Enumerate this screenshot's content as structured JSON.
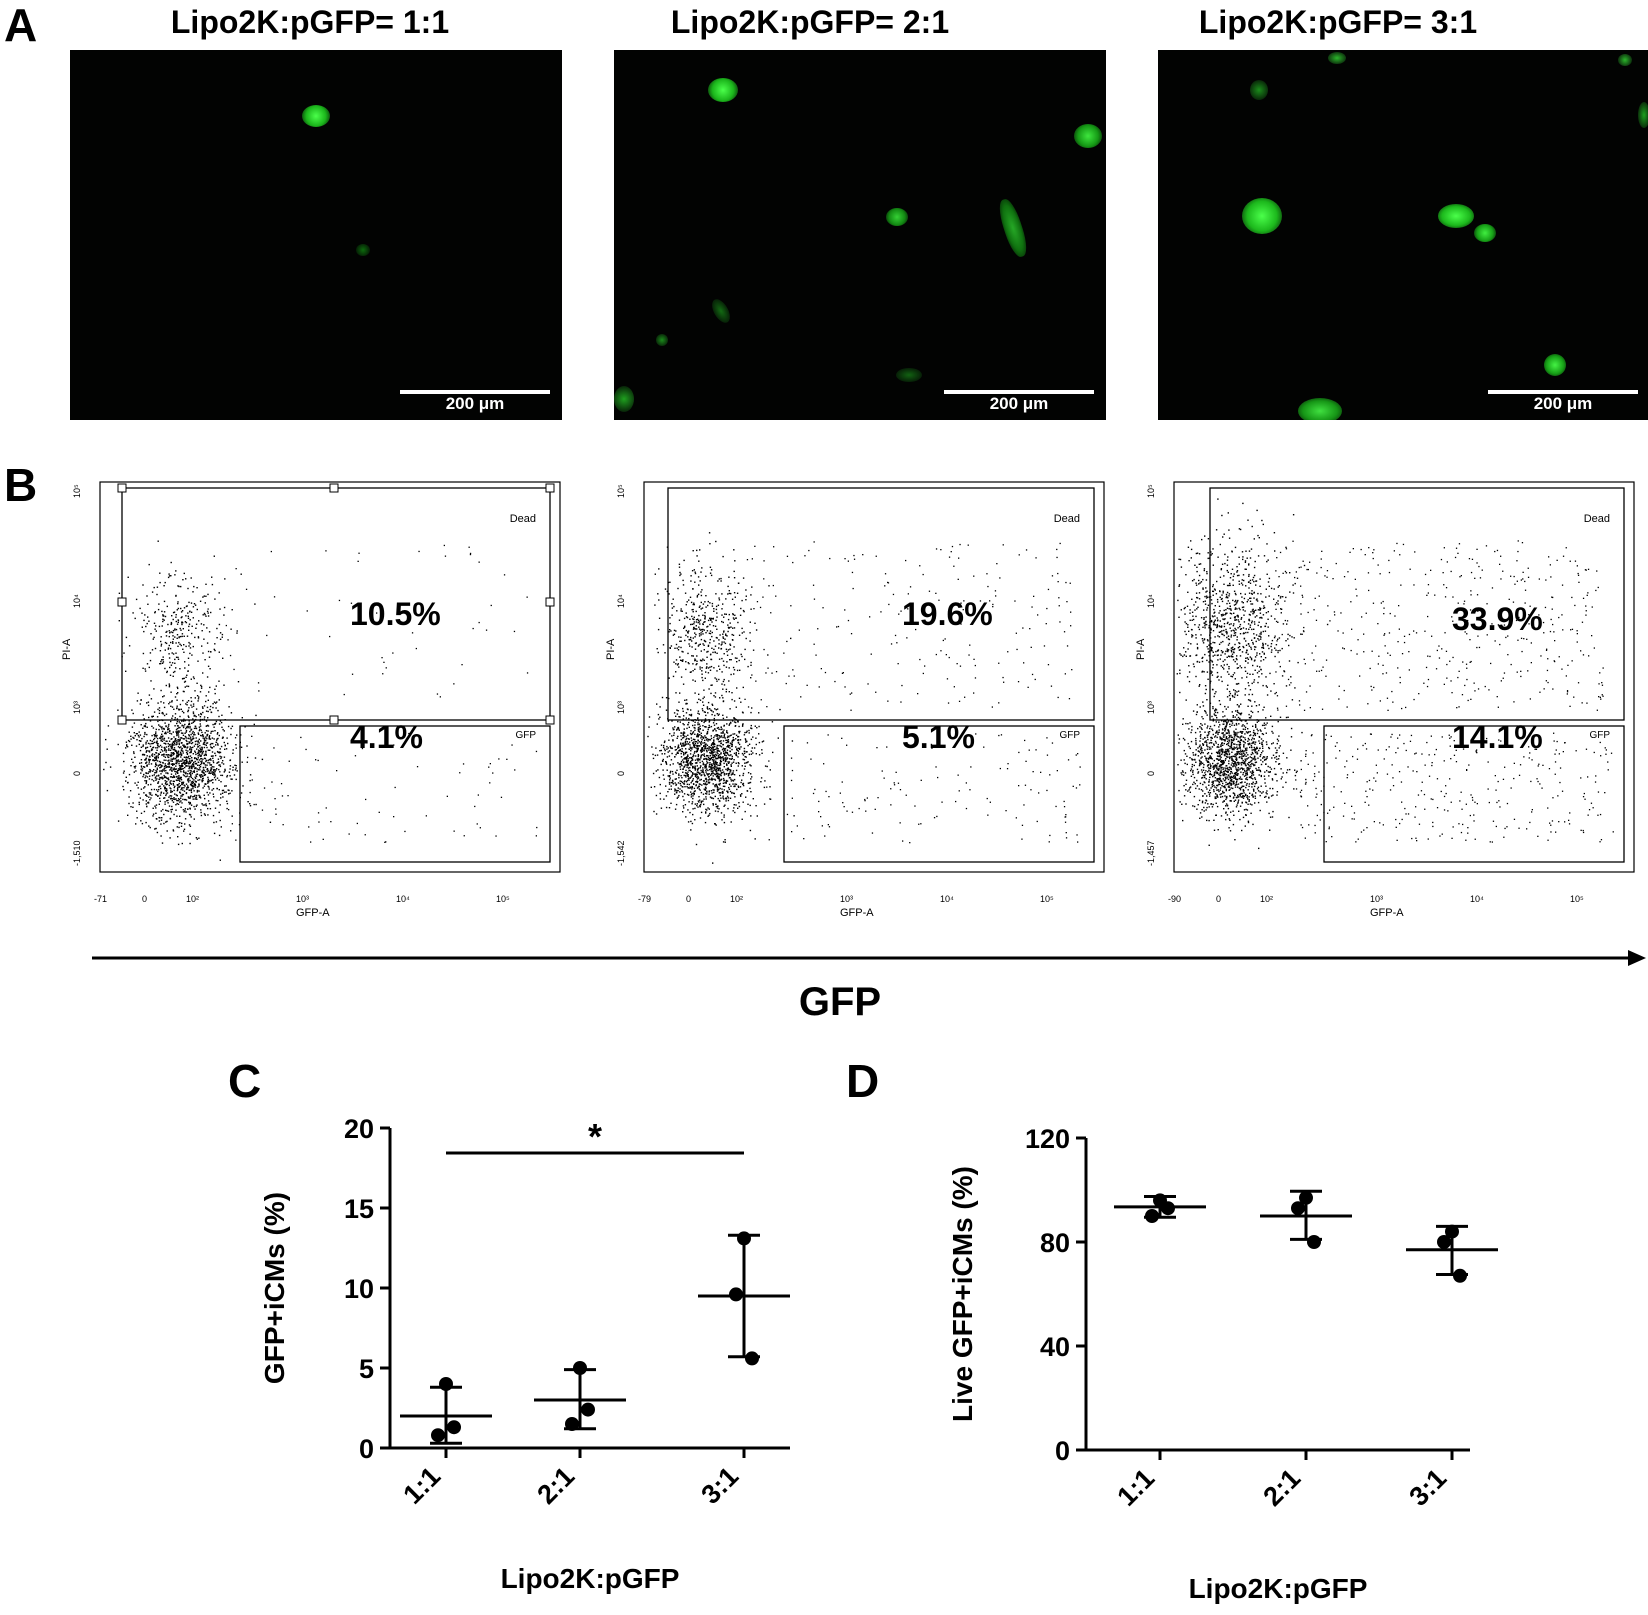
{
  "panels": {
    "A": "A",
    "B": "B",
    "C": "C",
    "D": "D"
  },
  "micrographs": [
    {
      "title": "Lipo2K:pGFP= 1:1",
      "scalebar": "200 μm"
    },
    {
      "title": "Lipo2K:pGFP= 2:1",
      "scalebar": "200 μm"
    },
    {
      "title": "Lipo2K:pGFP= 3:1",
      "scalebar": "200 μm"
    }
  ],
  "flow_plots": [
    {
      "dead_gate_label": "Dead",
      "gfp_gate_label": "GFP",
      "dead_pct": "10.5%",
      "gfp_pct": "4.1%",
      "y_ticks": [
        "10⁵",
        "10⁴",
        "10³",
        "0",
        "-1,510"
      ],
      "x_ticks": [
        "-71",
        "0",
        "10²",
        "10³",
        "10⁴",
        "10⁵"
      ],
      "x_label": "GFP-A",
      "y_label": "PI-A"
    },
    {
      "dead_gate_label": "Dead",
      "gfp_gate_label": "GFP",
      "dead_pct": "19.6%",
      "gfp_pct": "5.1%",
      "y_ticks": [
        "10⁵",
        "10⁴",
        "10³",
        "0",
        "-1,542"
      ],
      "x_ticks": [
        "-79",
        "0",
        "10²",
        "10³",
        "10⁴",
        "10⁵"
      ],
      "x_label": "GFP-A",
      "y_label": "PI-A"
    },
    {
      "dead_gate_label": "Dead",
      "gfp_gate_label": "GFP",
      "dead_pct": "33.9%",
      "gfp_pct": "14.1%",
      "y_ticks": [
        "10⁵",
        "10⁴",
        "10³",
        "0",
        "-1,457"
      ],
      "x_ticks": [
        "-90",
        "0",
        "10²",
        "10³",
        "10⁴",
        "10⁵"
      ],
      "x_label": "GFP-A",
      "y_label": "PI-A"
    }
  ],
  "gfp_axis_label": "GFP",
  "chart_data": [
    {
      "type": "scatter",
      "panel": "C",
      "categories": [
        "1:1",
        "2:1",
        "3:1"
      ],
      "points": [
        [
          4.0,
          0.8,
          1.3
        ],
        [
          5.0,
          1.5,
          2.4
        ],
        [
          13.1,
          9.6,
          5.6
        ]
      ],
      "means": [
        2.0,
        3.0,
        9.5
      ],
      "sd_upper": [
        3.8,
        4.9,
        13.3
      ],
      "sd_lower": [
        0.3,
        1.2,
        5.7
      ],
      "ylabel": "GFP+iCMs (%)",
      "xlabel": "Lipo2K:pGFP",
      "ylim": [
        0,
        20
      ],
      "yticks": [
        0,
        5,
        10,
        15,
        20
      ],
      "significance": {
        "from": "1:1",
        "to": "3:1",
        "label": "*"
      }
    },
    {
      "type": "scatter",
      "panel": "D",
      "categories": [
        "1:1",
        "2:1",
        "3:1"
      ],
      "points": [
        [
          96,
          90,
          93
        ],
        [
          97,
          93,
          80
        ],
        [
          84,
          80,
          67
        ]
      ],
      "means": [
        93.5,
        90,
        77
      ],
      "sd_upper": [
        97.5,
        99.5,
        86
      ],
      "sd_lower": [
        89.5,
        81,
        67.5
      ],
      "ylabel": "Live GFP+iCMs (%)",
      "xlabel": "Lipo2K:pGFP",
      "ylim": [
        0,
        120
      ],
      "yticks": [
        0,
        40,
        80,
        120
      ]
    }
  ]
}
